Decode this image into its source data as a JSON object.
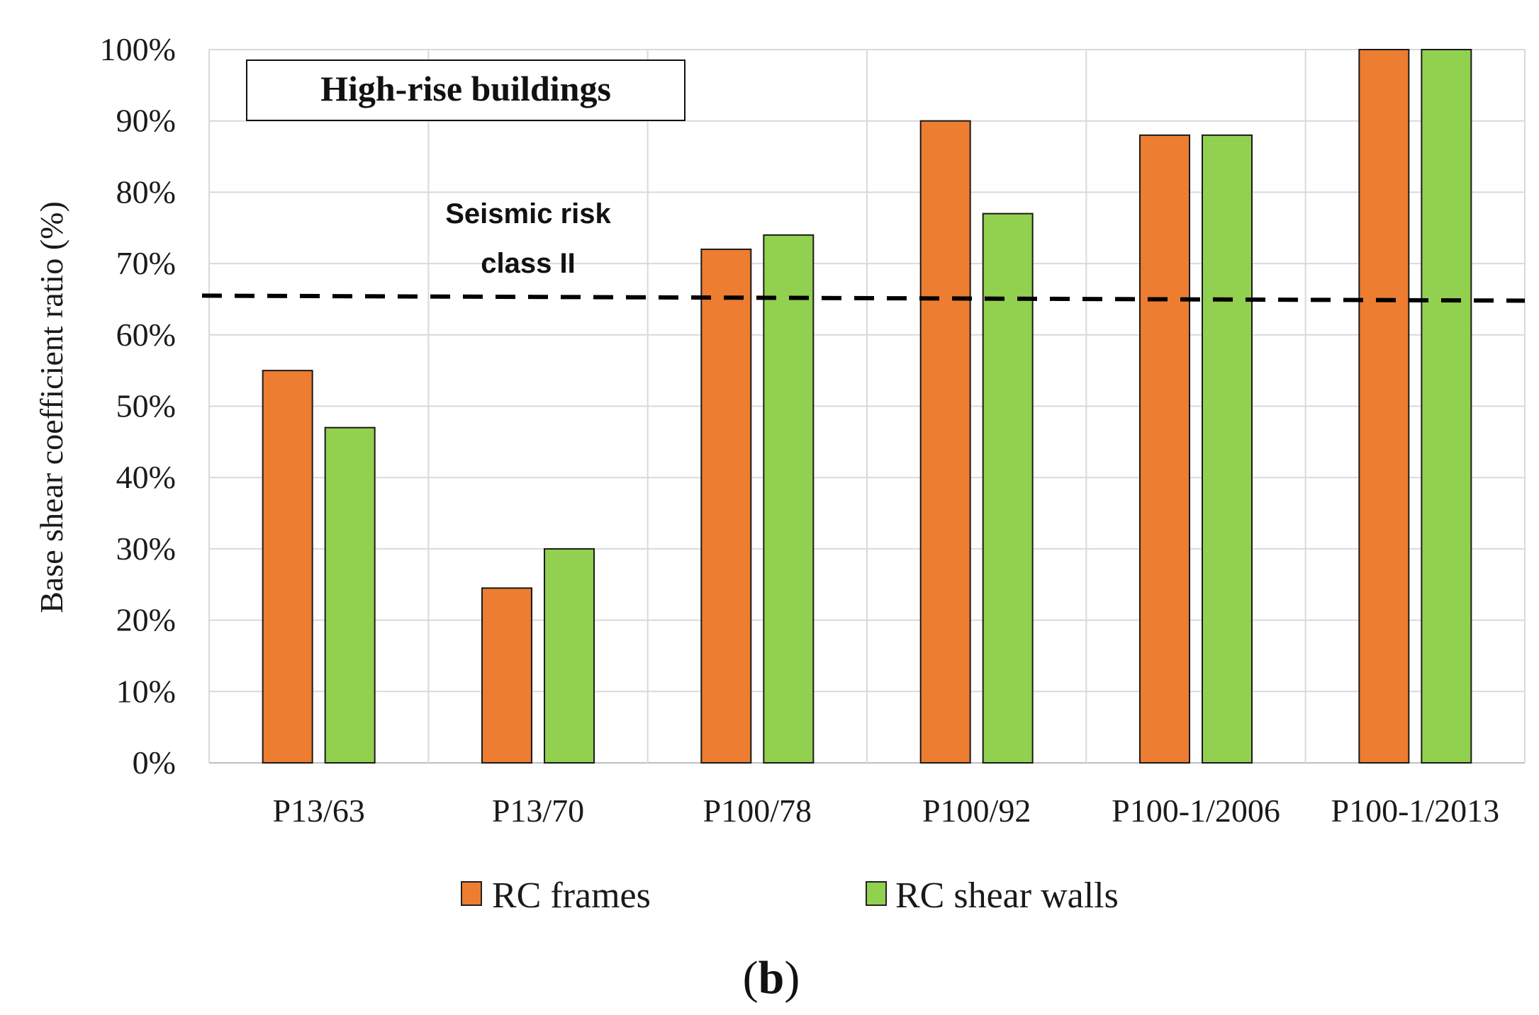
{
  "chart_data": {
    "type": "bar",
    "title": "High-rise buildings",
    "categories": [
      "P13/63",
      "P13/70",
      "P100/78",
      "P100/92",
      "P100-1/2006",
      "P100-1/2013"
    ],
    "series": [
      {
        "name": "RC frames",
        "values": [
          55,
          24.5,
          72,
          90,
          88,
          100
        ],
        "color": "#ED7D31"
      },
      {
        "name": "RC shear walls",
        "values": [
          47,
          30,
          74,
          77,
          88,
          100
        ],
        "color": "#92D050"
      }
    ],
    "xlabel": "",
    "ylabel": "Base shear coefficient ratio (%)",
    "ylim": [
      0,
      100
    ],
    "yticks": [
      "0%",
      "10%",
      "20%",
      "30%",
      "40%",
      "50%",
      "60%",
      "70%",
      "80%",
      "90%",
      "100%"
    ],
    "grid": true,
    "legend_position": "bottom",
    "reference_line": {
      "value_start": 65.5,
      "value_end": 64.8,
      "style": "dashed",
      "color": "#000000"
    },
    "annotation": {
      "line1": "Seismic risk",
      "line2": "class II"
    },
    "panel_label": {
      "open": "(",
      "letter": "b",
      "close": ")"
    }
  }
}
